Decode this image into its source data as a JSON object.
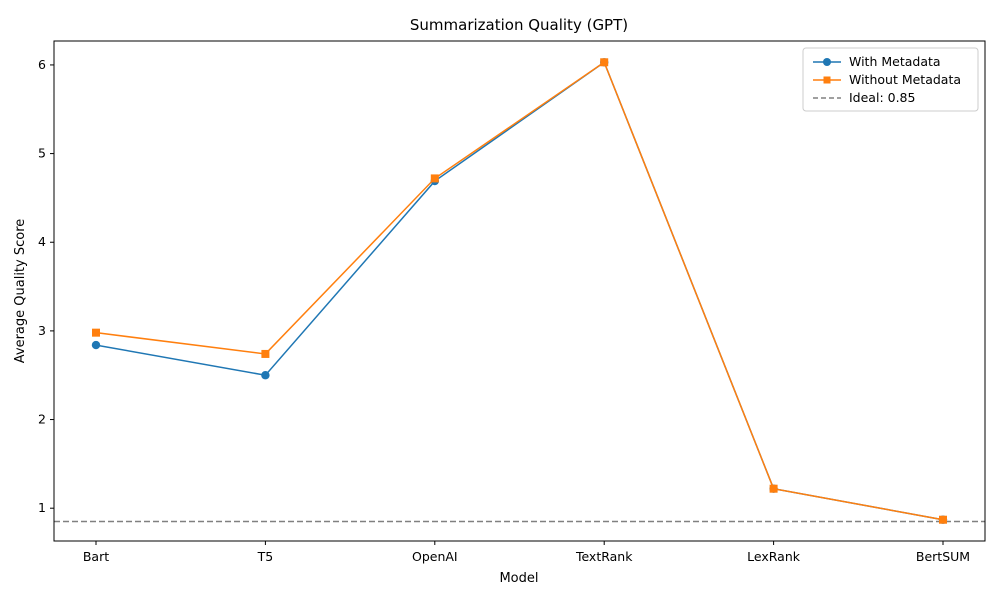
{
  "chart_data": {
    "type": "line",
    "title": "Summarization Quality (GPT)",
    "xlabel": "Model",
    "ylabel": "Average Quality Score",
    "categories": [
      "Bart",
      "T5",
      "OpenAI",
      "TextRank",
      "LexRank",
      "BertSUM"
    ],
    "ylim": [
      0.63,
      6.27
    ],
    "yticks": [
      1,
      2,
      3,
      4,
      5,
      6
    ],
    "series": [
      {
        "name": "With Metadata",
        "values": [
          2.84,
          2.5,
          4.69,
          6.03,
          1.22,
          0.87
        ],
        "color": "#1f77b4",
        "marker": "circle"
      },
      {
        "name": "Without Metadata",
        "values": [
          2.98,
          2.74,
          4.72,
          6.03,
          1.22,
          0.87
        ],
        "color": "#ff7f0e",
        "marker": "square"
      }
    ],
    "reference_line": {
      "label": "Ideal: 0.85",
      "value": 0.85,
      "color": "#808080",
      "style": "dashed"
    },
    "legend_position": "top-right",
    "grid": false
  }
}
